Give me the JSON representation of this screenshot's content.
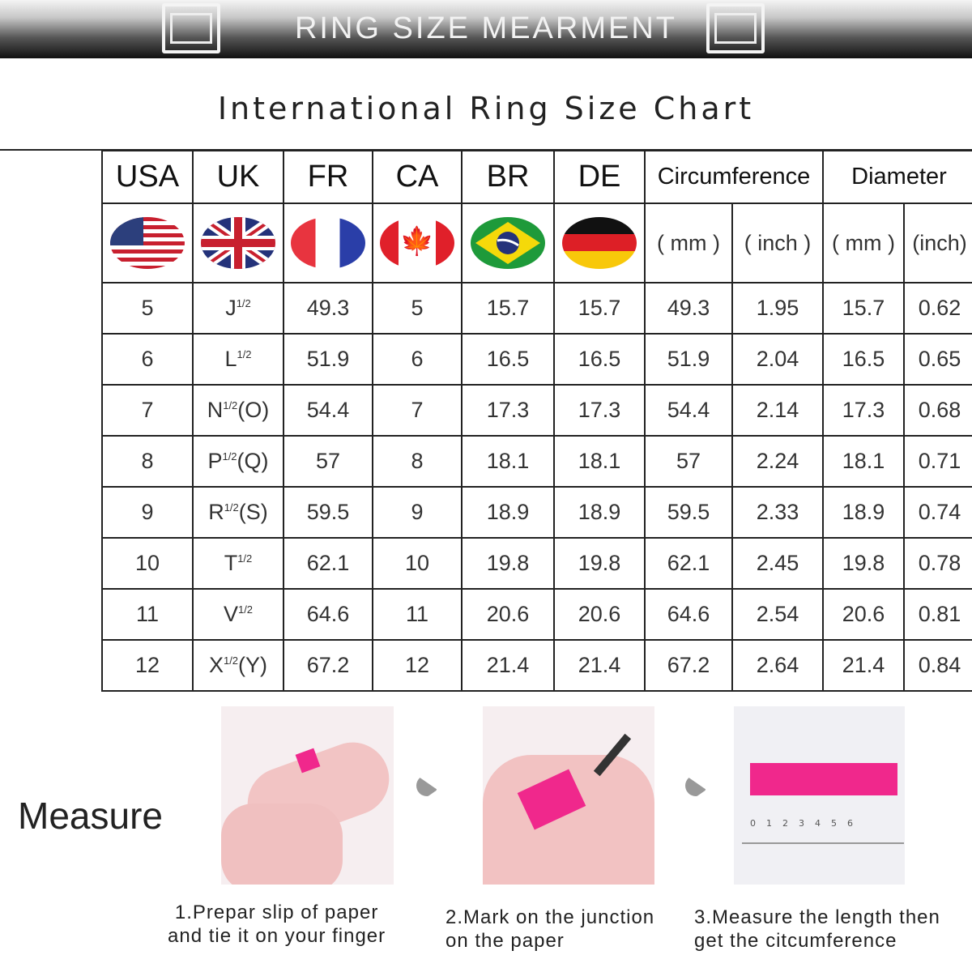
{
  "banner": {
    "title": "RING SIZE MEARMENT"
  },
  "subtitle": "International Ring Size Chart",
  "table": {
    "headers": [
      "USA",
      "UK",
      "FR",
      "CA",
      "BR",
      "DE",
      "Circumference",
      "Diameter"
    ],
    "flags": [
      "us-flag-icon",
      "uk-flag-icon",
      "france-flag-icon",
      "canada-flag-icon",
      "brazil-flag-icon",
      "germany-flag-icon"
    ],
    "units": [
      "( mm )",
      "( inch )",
      "( mm )",
      "(inch)"
    ],
    "rows": [
      {
        "usa": "5",
        "uk": "J",
        "uk_suffix": "",
        "fr": "49.3",
        "ca": "5",
        "br": "15.7",
        "de": "15.7",
        "c_mm": "49.3",
        "c_in": "1.95",
        "d_mm": "15.7",
        "d_in": "0.62"
      },
      {
        "usa": "6",
        "uk": "L",
        "uk_suffix": "",
        "fr": "51.9",
        "ca": "6",
        "br": "16.5",
        "de": "16.5",
        "c_mm": "51.9",
        "c_in": "2.04",
        "d_mm": "16.5",
        "d_in": "0.65"
      },
      {
        "usa": "7",
        "uk": "N",
        "uk_suffix": "(O)",
        "fr": "54.4",
        "ca": "7",
        "br": "17.3",
        "de": "17.3",
        "c_mm": "54.4",
        "c_in": "2.14",
        "d_mm": "17.3",
        "d_in": "0.68"
      },
      {
        "usa": "8",
        "uk": "P",
        "uk_suffix": "(Q)",
        "fr": "57",
        "ca": "8",
        "br": "18.1",
        "de": "18.1",
        "c_mm": "57",
        "c_in": "2.24",
        "d_mm": "18.1",
        "d_in": "0.71"
      },
      {
        "usa": "9",
        "uk": "R",
        "uk_suffix": "(S)",
        "fr": "59.5",
        "ca": "9",
        "br": "18.9",
        "de": "18.9",
        "c_mm": "59.5",
        "c_in": "2.33",
        "d_mm": "18.9",
        "d_in": "0.74"
      },
      {
        "usa": "10",
        "uk": "T",
        "uk_suffix": "",
        "fr": "62.1",
        "ca": "10",
        "br": "19.8",
        "de": "19.8",
        "c_mm": "62.1",
        "c_in": "2.45",
        "d_mm": "19.8",
        "d_in": "0.78"
      },
      {
        "usa": "11",
        "uk": "V",
        "uk_suffix": "",
        "fr": "64.6",
        "ca": "11",
        "br": "20.6",
        "de": "20.6",
        "c_mm": "64.6",
        "c_in": "2.54",
        "d_mm": "20.6",
        "d_in": "0.81"
      },
      {
        "usa": "12",
        "uk": "X",
        "uk_suffix": "(Y)",
        "fr": "67.2",
        "ca": "12",
        "br": "21.4",
        "de": "21.4",
        "c_mm": "67.2",
        "c_in": "2.64",
        "d_mm": "21.4",
        "d_in": "0.84"
      }
    ],
    "half": "1/2"
  },
  "measure": {
    "label": "Measure",
    "ruler": [
      "0",
      "1",
      "2",
      "3",
      "4",
      "5",
      "6"
    ],
    "steps": [
      {
        "line1": "1.Prepar slip of paper",
        "line2": "and tie it on your finger"
      },
      {
        "line1": "2.Mark on the junction",
        "line2": "on the paper"
      },
      {
        "line1": "3.Measure the length then",
        "line2": "get the citcumference"
      }
    ],
    "accent": "#f0288c"
  }
}
